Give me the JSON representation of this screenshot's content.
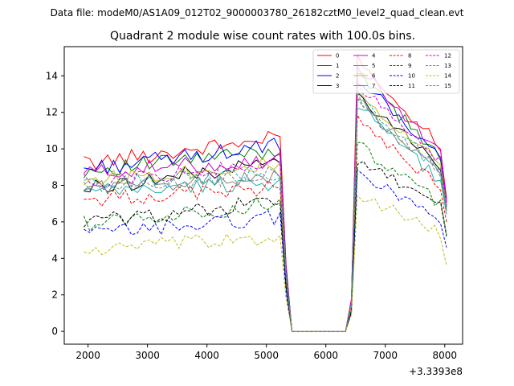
{
  "chart_data": {
    "type": "line",
    "suptitle": "Data file: modeM0/AS1A09_012T02_9000003780_26182cztM0_level2_quad_clean.evt",
    "title": "Quadrant 2 module wise count rates with 100.0s bins.",
    "xlabel": "",
    "ylabel": "",
    "offset_label": "+3.3393e8",
    "xlim": [
      1600,
      8300
    ],
    "ylim": [
      -0.7,
      15.6
    ],
    "x_ticks": [
      2000,
      3000,
      4000,
      5000,
      6000,
      7000,
      8000
    ],
    "y_ticks": [
      0,
      2,
      4,
      6,
      8,
      10,
      12,
      14
    ],
    "legend_position": "top-right",
    "grid": false,
    "x": [
      1930,
      2030,
      2130,
      2230,
      2330,
      2430,
      2530,
      2630,
      2730,
      2830,
      2930,
      3030,
      3130,
      3230,
      3330,
      3430,
      3530,
      3630,
      3730,
      3830,
      3930,
      4030,
      4130,
      4230,
      4330,
      4430,
      4530,
      4630,
      4730,
      4830,
      4930,
      5030,
      5130,
      5230,
      5330,
      5430,
      5530,
      5630,
      5730,
      5830,
      5930,
      6030,
      6130,
      6230,
      6330,
      6430,
      6530,
      6630,
      6730,
      6830,
      6930,
      7030,
      7130,
      7230,
      7330,
      7430,
      7530,
      7630,
      7730,
      7830,
      7930,
      8030
    ],
    "series": [
      {
        "name": "0",
        "color": "#ff0000",
        "dash": "solid",
        "base_a": 9.2,
        "base_b": 10.6,
        "post_peak": 14.9,
        "post_end": 10.1,
        "tail": 7.3
      },
      {
        "name": "1",
        "color": "#008000",
        "dash": "solid",
        "base_a": 8.8,
        "base_b": 9.9,
        "post_peak": 14.1,
        "post_end": 9.6,
        "tail": 7.1
      },
      {
        "name": "2",
        "color": "#0000ff",
        "dash": "solid",
        "base_a": 8.9,
        "base_b": 10.2,
        "post_peak": 13.9,
        "post_end": 9.5,
        "tail": 7.2
      },
      {
        "name": "3",
        "color": "#000000",
        "dash": "solid",
        "base_a": 7.8,
        "base_b": 9.3,
        "post_peak": 12.9,
        "post_end": 9.0,
        "tail": 6.8
      },
      {
        "name": "4",
        "color": "#cc00cc",
        "dash": "solid",
        "base_a": 8.7,
        "base_b": 9.4,
        "post_peak": 14.5,
        "post_end": 9.9,
        "tail": 7.0
      },
      {
        "name": "5",
        "color": "#20b2aa",
        "dash": "solid",
        "base_a": 7.6,
        "base_b": 8.2,
        "post_peak": 12.4,
        "post_end": 8.2,
        "tail": 6.4
      },
      {
        "name": "6",
        "color": "#bcbd22",
        "dash": "solid",
        "base_a": 8.3,
        "base_b": 9.2,
        "post_peak": 13.2,
        "post_end": 9.1,
        "tail": 6.9
      },
      {
        "name": "7",
        "color": "#808080",
        "dash": "solid",
        "base_a": 7.9,
        "base_b": 8.5,
        "post_peak": 12.6,
        "post_end": 8.6,
        "tail": 6.6
      },
      {
        "name": "8",
        "color": "#ff0000",
        "dash": "dashed",
        "base_a": 7.2,
        "base_b": 7.9,
        "post_peak": 11.5,
        "post_end": 7.9,
        "tail": 6.0
      },
      {
        "name": "9",
        "color": "#008000",
        "dash": "dashed",
        "base_a": 5.9,
        "base_b": 7.0,
        "post_peak": 10.2,
        "post_end": 7.0,
        "tail": 5.3
      },
      {
        "name": "10",
        "color": "#0000ff",
        "dash": "dashed",
        "base_a": 5.3,
        "base_b": 6.3,
        "post_peak": 8.6,
        "post_end": 6.2,
        "tail": 4.6
      },
      {
        "name": "11",
        "color": "#000000",
        "dash": "dashed",
        "base_a": 6.0,
        "base_b": 7.1,
        "post_peak": 9.2,
        "post_end": 7.1,
        "tail": 5.2
      },
      {
        "name": "12",
        "color": "#cc00cc",
        "dash": "dashed",
        "base_a": 8.2,
        "base_b": 9.1,
        "post_peak": 13.5,
        "post_end": 9.3,
        "tail": 6.9
      },
      {
        "name": "13",
        "color": "#20b2aa",
        "dash": "dashed",
        "base_a": 8.0,
        "base_b": 8.7,
        "post_peak": 12.8,
        "post_end": 8.8,
        "tail": 6.7
      },
      {
        "name": "14",
        "color": "#bcbd22",
        "dash": "dashed",
        "base_a": 4.4,
        "base_b": 5.2,
        "post_peak": 7.6,
        "post_end": 5.3,
        "tail": 3.6
      },
      {
        "name": "15",
        "color": "#808080",
        "dash": "dashed",
        "base_a": 7.8,
        "base_b": 8.6,
        "post_peak": 12.5,
        "post_end": 8.7,
        "tail": 6.6
      }
    ]
  }
}
